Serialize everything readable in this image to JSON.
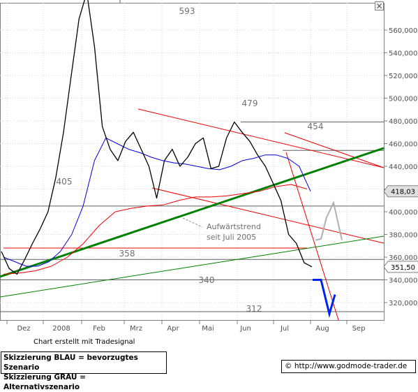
{
  "chart_data": {
    "type": "line",
    "title": "",
    "ylim": [
      305000,
      600000
    ],
    "y_ticks": [
      "320,000",
      "340,000",
      "360,000",
      "380,000",
      "400,000",
      "420,000",
      "440,000",
      "460,000",
      "480,000",
      "500,000",
      "520,000",
      "540,000",
      "560,000"
    ],
    "x_ticks": [
      "Dez",
      "2008",
      "Feb",
      "Mrz",
      "Apr",
      "Mai",
      "Jun",
      "Jul",
      "Aug",
      "Sep"
    ],
    "price_labels": [
      "418,03",
      "351,50"
    ],
    "level_labels": [
      "593",
      "479",
      "454",
      "405",
      "358",
      "340",
      "312"
    ],
    "annotation": "Aufwärtstrend seit Juli 2005",
    "series": [
      {
        "color": "#000000",
        "values": [
          365000,
          350000,
          345000,
          358000,
          372000,
          385000,
          400000,
          430000,
          470000,
          520000,
          570000,
          593000,
          545000,
          475000,
          455000,
          445000,
          462000,
          470000,
          455000,
          440000,
          412000,
          445000,
          455000,
          440000,
          448000,
          460000,
          465000,
          438000,
          440000,
          465000,
          479000,
          470000,
          462000,
          450000,
          440000,
          425000,
          410000,
          380000,
          372000,
          355000,
          351500
        ]
      },
      {
        "color": "#0000dd",
        "values": [
          360000,
          356000,
          352000,
          352000,
          356000,
          365000,
          380000,
          405000,
          445000,
          465000,
          460000,
          455000,
          452000,
          448000,
          445000,
          443000,
          442000,
          440000,
          438000,
          437000,
          440000,
          445000,
          447000,
          450000,
          450000,
          447000,
          440000,
          418030
        ]
      },
      {
        "color": "#ee0000",
        "values": [
          345000,
          346000,
          348000,
          352000,
          360000,
          372000,
          388000,
          400000,
          403000,
          405000,
          406000,
          410000,
          413000,
          413000,
          414000,
          416000,
          418000,
          422000,
          424000,
          420000
        ]
      }
    ],
    "scenario_blue": [
      340000,
      340000,
      310000,
      327000
    ],
    "scenario_gray": [
      375000,
      376000,
      395000,
      408000,
      375000
    ],
    "trendlines_green": [
      "thick",
      "thin"
    ],
    "trendlines_red": 5,
    "horizontal_levels": [
      593000,
      479000,
      454000,
      405000,
      358000,
      340000,
      312000
    ],
    "grid": true
  },
  "legend": {
    "line1": "Skizzierung BLAU = bevorzugtes Szenario",
    "line2": "Skizzierung GRAU = Alternativszenario"
  },
  "credit": "Chart erstellt mit Tradesignal",
  "website": "© http://www.godmode-trader.de",
  "close_icon": "×",
  "colors": {
    "price": "#000000",
    "ma_blue": "#0000dd",
    "ma_red": "#ee0000",
    "trend_green": "#008000",
    "scenario_blue": "#0022ee",
    "scenario_gray": "#b0b0b0",
    "level_line": "#606060",
    "grid": "#d8d8d8",
    "label_text": "#707070",
    "axis_text": "#505050"
  }
}
